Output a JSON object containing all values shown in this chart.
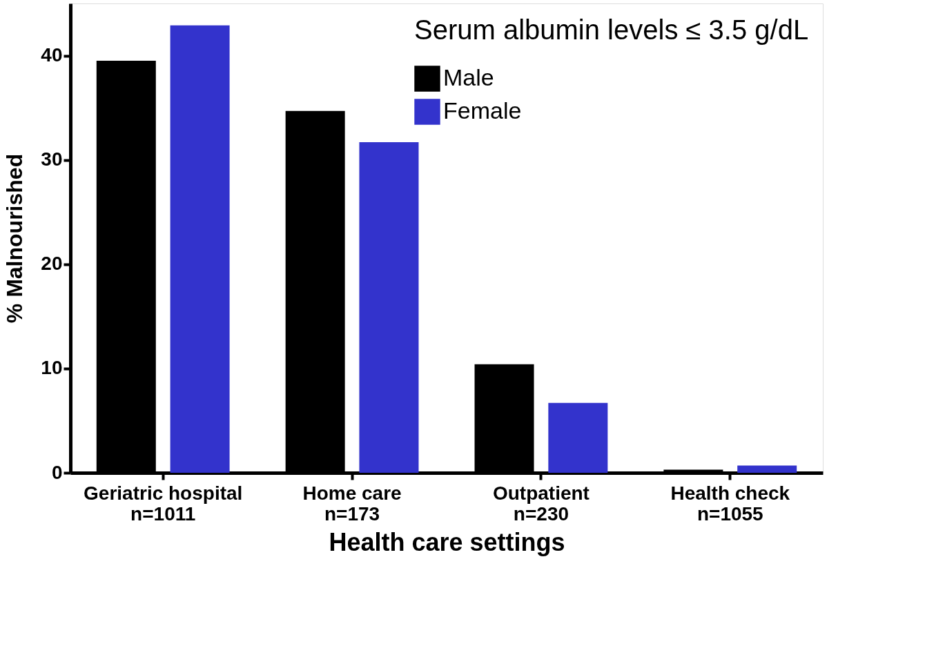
{
  "chart_data": {
    "type": "bar",
    "xlabel": "Health care settings",
    "ylabel": "% Malnourished",
    "legend_title": "Serum albumin levels ≤ 3.5 g/dL",
    "categories": [
      "Geriatric hospital\nn=1011",
      "Home care\nn=173",
      "Outpatient\nn=230",
      "Health check\nn=1055"
    ],
    "series": [
      {
        "name": "Male",
        "color": "#000000",
        "values": [
          39.5,
          34.7,
          10.4,
          0.3
        ]
      },
      {
        "name": "Female",
        "color": "#3333cc",
        "values": [
          42.9,
          31.7,
          6.7,
          0.7
        ]
      }
    ],
    "ylim": [
      0,
      45
    ],
    "yticks": [
      0,
      10,
      20,
      30,
      40
    ],
    "grid": false,
    "legend": "top right"
  }
}
